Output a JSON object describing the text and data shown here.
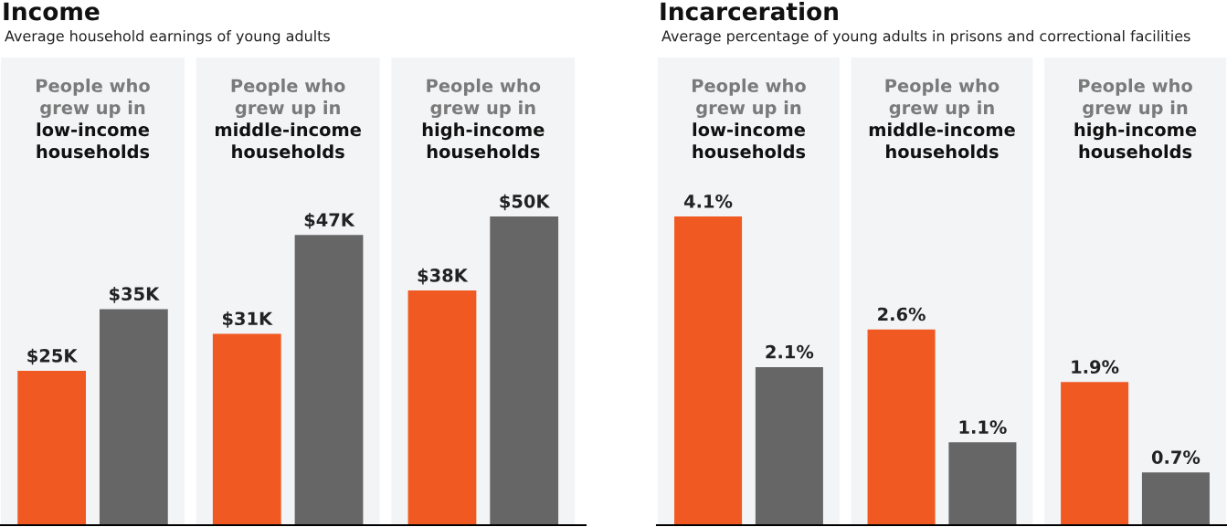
{
  "chart_data": [
    {
      "type": "bar",
      "title": "Income",
      "subtitle": "Average household earnings of young adults",
      "categories": [
        "People who\ngrew up in\nlow-income\nhouseholds",
        "People who\ngrew up in\nmiddle-income\nhouseholds",
        "People who\ngrew up in\nhigh-income\nhouseholds"
      ],
      "series": [
        {
          "color": "#f05a22",
          "values": [
            25,
            31,
            38
          ],
          "value_labels": [
            "$25K",
            "$31K",
            "$38K"
          ]
        },
        {
          "color": "#666666",
          "values": [
            35,
            47,
            50
          ],
          "value_labels": [
            "$35K",
            "$47K",
            "$50K"
          ]
        }
      ],
      "bands": [
        {
          "axis": "x",
          "from": "People who\ngrew up in\nlow-income\nhouseholds",
          "to": "People who\ngrew up in\nlow-income\nhouseholds",
          "color": "#f3f4f6"
        },
        {
          "axis": "x",
          "from": "People who\ngrew up in\nmiddle-income\nhouseholds",
          "to": "People who\ngrew up in\nmiddle-income\nhouseholds",
          "color": "#f3f4f6"
        },
        {
          "axis": "x",
          "from": "People who\ngrew up in\nhigh-income\nhouseholds",
          "to": "People who\ngrew up in\nhigh-income\nhouseholds",
          "color": "#f3f4f6"
        }
      ]
    },
    {
      "type": "bar",
      "title": "Incarceration",
      "subtitle": "Average percentage of young adults in prisons and correctional facilities",
      "categories": [
        "People who\ngrew up in\nlow-income\nhouseholds",
        "People who\ngrew up in\nmiddle-income\nhouseholds",
        "People who\ngrew up in\nhigh-income\nhouseholds"
      ],
      "series": [
        {
          "color": "#f05a22",
          "values": [
            4.1,
            2.6,
            1.9
          ],
          "value_labels": [
            "4.1%",
            "2.6%",
            "1.9%"
          ]
        },
        {
          "color": "#666666",
          "values": [
            2.1,
            1.1,
            0.7
          ],
          "value_labels": [
            "2.1%",
            "1.1%",
            "0.7%"
          ]
        }
      ],
      "bands": [
        {
          "axis": "x",
          "from": "People who\ngrew up in\nlow-income\nhouseholds",
          "to": "People who\ngrew up in\nlow-income\nhouseholds",
          "color": "#f3f4f6"
        },
        {
          "axis": "x",
          "from": "People who\ngrew up in\nmiddle-income\nhouseholds",
          "to": "People who\ngrew up in\nmiddle-income\nhouseholds",
          "color": "#f3f4f6"
        },
        {
          "axis": "x",
          "from": "People who\ngrew up in\nhigh-income\nhouseholds",
          "to": "People who\ngrew up in\nhigh-income\nhouseholds",
          "color": "#f3f4f6"
        }
      ]
    }
  ]
}
